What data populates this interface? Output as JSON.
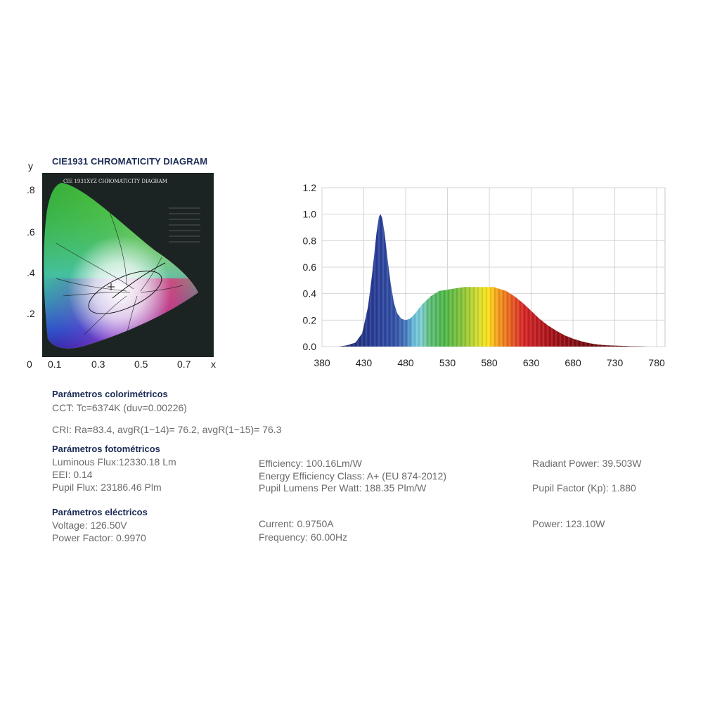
{
  "cie": {
    "title": "CIE1931 CHROMATICITY DIAGRAM",
    "inner_title": "CIE 1931XYZ CHROMATICITY DIAGRAM",
    "y_axis_label": "y",
    "x_axis_label": "x",
    "y_ticks": [
      ".8",
      ".6",
      ".4",
      ".2"
    ],
    "x_ticks": [
      "0",
      "0.1",
      "0.3",
      "0.5",
      "0.7"
    ]
  },
  "chart_data": {
    "type": "area",
    "title": "",
    "xlabel": "",
    "ylabel": "",
    "xlim": [
      380,
      790
    ],
    "ylim": [
      0,
      1.2
    ],
    "x_ticks": [
      380,
      430,
      480,
      530,
      580,
      630,
      680,
      730,
      780
    ],
    "y_ticks": [
      "0.0",
      "0.2",
      "0.4",
      "0.6",
      "0.8",
      "1.0",
      "1.2"
    ],
    "grid": true,
    "series": [
      {
        "x": [
          400,
          410,
          420,
          428,
          435,
          440,
          445,
          448,
          450,
          452,
          455,
          458,
          462,
          466,
          470,
          475,
          480,
          485,
          490,
          495,
          500,
          510,
          520,
          530,
          540,
          550,
          560,
          570,
          575,
          580,
          585,
          590,
          600,
          610,
          620,
          630,
          640,
          650,
          660,
          670,
          680,
          690,
          700,
          710,
          720,
          730,
          740,
          750,
          760,
          770
        ],
        "y": [
          0.0,
          0.01,
          0.03,
          0.1,
          0.3,
          0.55,
          0.85,
          0.98,
          1.0,
          0.97,
          0.85,
          0.68,
          0.48,
          0.33,
          0.25,
          0.21,
          0.2,
          0.21,
          0.24,
          0.28,
          0.32,
          0.38,
          0.42,
          0.43,
          0.44,
          0.45,
          0.45,
          0.45,
          0.45,
          0.45,
          0.45,
          0.44,
          0.42,
          0.38,
          0.33,
          0.27,
          0.21,
          0.16,
          0.12,
          0.085,
          0.06,
          0.04,
          0.025,
          0.015,
          0.01,
          0.007,
          0.005,
          0.003,
          0.002,
          0.0
        ]
      }
    ]
  },
  "params": {
    "colorimetric": {
      "heading": "Parámetros colorimétricos",
      "cct": "CCT: Tc=6374K (duv=0.00226)",
      "cri": "CRI: Ra=83.4, avgR(1~14)= 76.2, avgR(1~15)= 76.3"
    },
    "photometric": {
      "heading": "Parámetros fotométricos",
      "luminous_flux": "Luminous Flux:12330.18 Lm",
      "eei": "EEI: 0.14",
      "pupil_flux": "Pupil Flux: 23186.46 Plm",
      "efficiency": "Efficiency: 100.16Lm/W",
      "energy_class": "Energy Efficiency Class: A+ (EU 874-2012)",
      "pupil_lpw": "Pupil Lumens Per Watt: 188.35 Plm/W",
      "radiant_power": "Radiant Power: 39.503W",
      "pupil_factor": "Pupil Factor (Kp): 1.880"
    },
    "electrical": {
      "heading": "Parámetros eléctricos",
      "voltage": "Voltage: 126.50V",
      "power_factor": "Power Factor: 0.9970",
      "current": "Current: 0.9750A",
      "frequency": "Frequency: 60.00Hz",
      "power": "Power: 123.10W"
    }
  }
}
